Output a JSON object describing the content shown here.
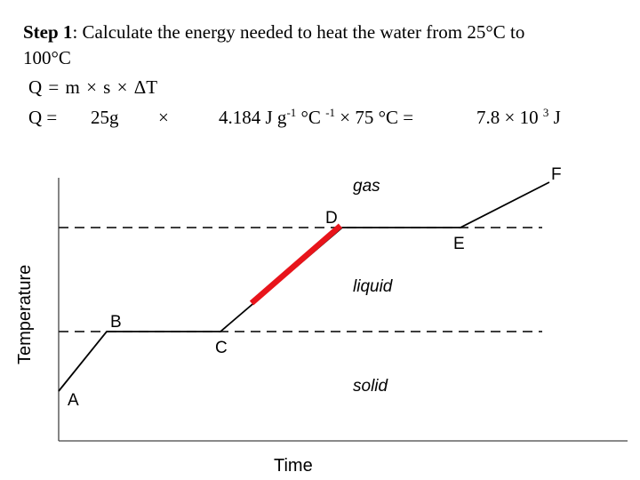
{
  "step": {
    "label": "Step 1",
    "separator": ":",
    "text_line1": " Calculate the energy needed to heat the water from 25°C to",
    "text_line2": "100°C"
  },
  "formula": "Q = m  × s  × ΔT",
  "calculation": {
    "q_label": "Q =",
    "mass": "25g",
    "times1": "×",
    "specific_heat_base": "4.184 J g",
    "specific_heat_exp1": "-1",
    "specific_heat_mid": " °C ",
    "specific_heat_exp2": "-1",
    "times2": " × ",
    "delta_t": "75 °C  =",
    "result_base": "7.8 × 10 ",
    "result_exp": "3",
    "result_unit": " J"
  },
  "diagram": {
    "x_axis_label": "Time",
    "y_axis_label": "Temperature",
    "phase_labels": {
      "gas": "gas",
      "liquid": "liquid",
      "solid": "solid"
    },
    "points": {
      "A": "A",
      "B": "B",
      "C": "C",
      "D": "D",
      "E": "E",
      "F": "F"
    },
    "line_color": "#000000",
    "highlight_color": "#e8141b",
    "dash_color": "#222222"
  }
}
